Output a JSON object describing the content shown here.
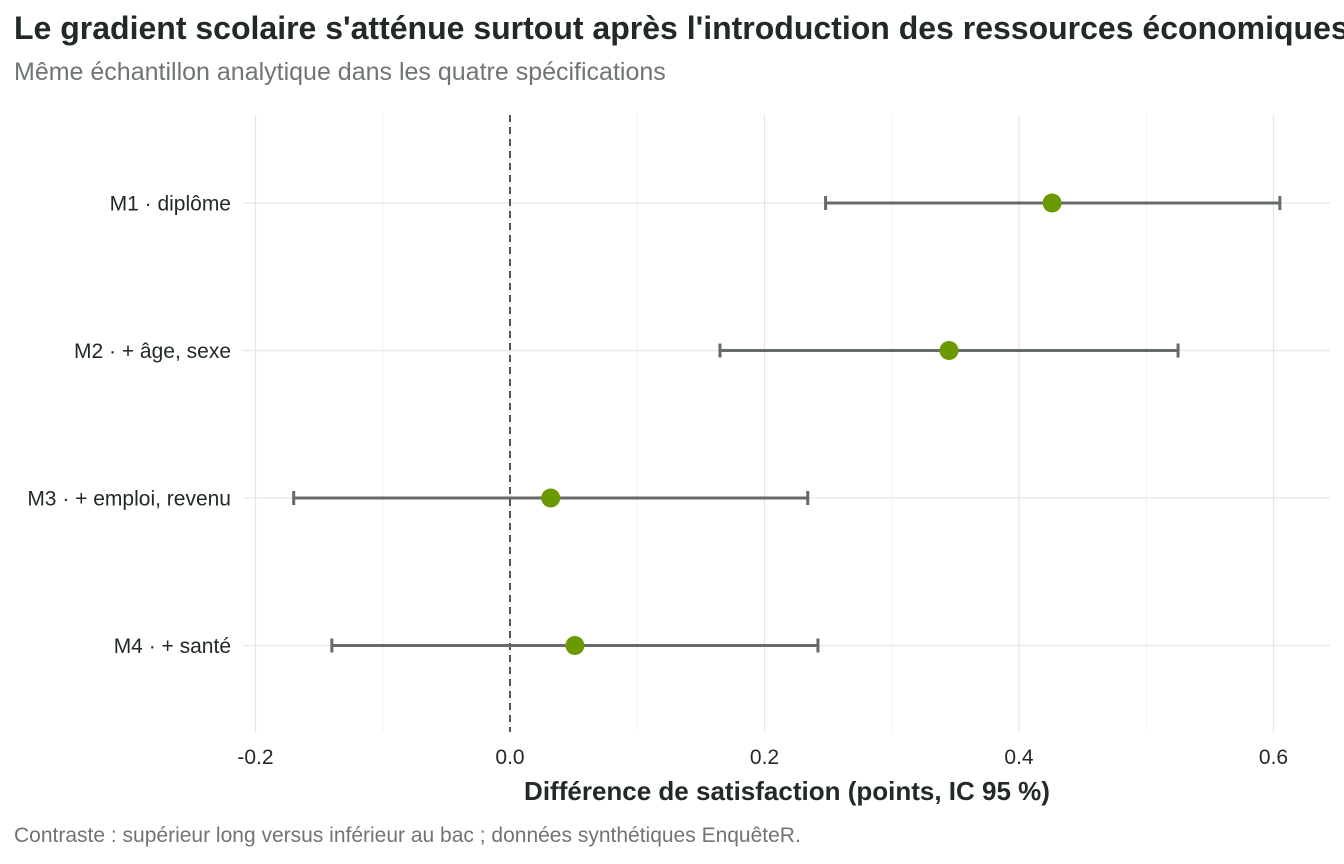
{
  "title": "Le gradient scolaire s'atténue surtout après l'introduction des ressources économiques",
  "subtitle": "Même échantillon analytique dans les quatre spécifications",
  "caption": "Contraste : supérieur long versus inférieur au bac ; données synthétiques EnquêteR.",
  "colors": {
    "point": "#6b9a00",
    "errorbar": "#646b69",
    "grid": "#e6e6e6",
    "reference_line": "#555555",
    "text": "#222a29"
  },
  "chart_data": {
    "type": "scatter",
    "orientation": "horizontal",
    "xlabel": "Différence de satisfaction (points, IC 95 %)",
    "ylabel": "",
    "xlim": [
      -0.2,
      0.6
    ],
    "xticks": [
      -0.2,
      0.0,
      0.2,
      0.4,
      0.6
    ],
    "xtick_labels": [
      "-0.2",
      "0.0",
      "0.2",
      "0.4",
      "0.6"
    ],
    "reference_line": 0.0,
    "grid": true,
    "legend": "none",
    "categories": [
      "M1 · diplôme",
      "M2 · + âge, sexe",
      "M3 · + emploi, revenu",
      "M4 · + santé"
    ],
    "estimates": [
      0.426,
      0.345,
      0.032,
      0.051
    ],
    "ci_low": [
      0.248,
      0.165,
      -0.17,
      -0.14
    ],
    "ci_high": [
      0.605,
      0.525,
      0.234,
      0.242
    ]
  }
}
